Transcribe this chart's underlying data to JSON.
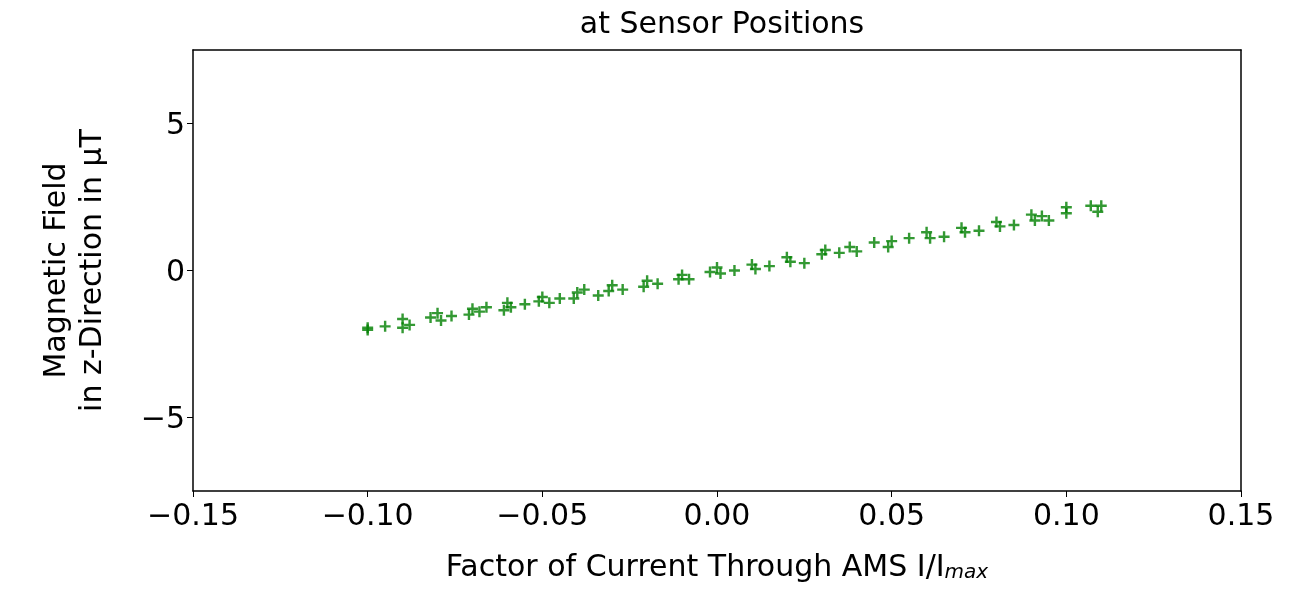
{
  "chart_data": {
    "type": "scatter",
    "title": "at Sensor Positions",
    "xlabel": "Factor of Current Through AMS I/I$_{max}$",
    "ylabel": "Magnetic Field\nin z-Direction in μT",
    "series": [
      {
        "color": "#008000",
        "x": [
          -0.1,
          -0.1,
          -0.095,
          -0.09,
          -0.09,
          -0.088,
          -0.082,
          -0.08,
          -0.079,
          -0.076,
          -0.071,
          -0.07,
          -0.068,
          -0.066,
          -0.061,
          -0.06,
          -0.059,
          -0.055,
          -0.051,
          -0.05,
          -0.048,
          -0.045,
          -0.041,
          -0.04,
          -0.038,
          -0.034,
          -0.031,
          -0.03,
          -0.027,
          -0.021,
          -0.02,
          -0.017,
          -0.011,
          -0.01,
          -0.008,
          -0.002,
          0.0,
          0.001,
          0.005,
          0.01,
          0.011,
          0.015,
          0.02,
          0.021,
          0.025,
          0.03,
          0.031,
          0.035,
          0.038,
          0.04,
          0.045,
          0.049,
          0.05,
          0.055,
          0.06,
          0.061,
          0.065,
          0.07,
          0.071,
          0.075,
          0.08,
          0.081,
          0.085,
          0.09,
          0.091,
          0.093,
          0.095,
          0.1,
          0.1,
          0.107,
          0.109,
          0.11
        ],
        "values": [
          -2.02,
          -1.95,
          -1.9,
          -1.65,
          -1.95,
          -1.85,
          -1.6,
          -1.45,
          -1.7,
          -1.55,
          -1.5,
          -1.3,
          -1.4,
          -1.25,
          -1.35,
          -1.1,
          -1.25,
          -1.15,
          -1.05,
          -0.9,
          -1.1,
          -0.95,
          -0.95,
          -0.75,
          -0.65,
          -0.85,
          -0.7,
          -0.5,
          -0.65,
          -0.55,
          -0.35,
          -0.45,
          -0.3,
          -0.15,
          -0.3,
          -0.05,
          0.1,
          -0.1,
          0.0,
          0.2,
          0.05,
          0.15,
          0.45,
          0.3,
          0.25,
          0.55,
          0.7,
          0.6,
          0.8,
          0.65,
          0.95,
          0.8,
          1.0,
          1.1,
          1.3,
          1.1,
          1.15,
          1.45,
          1.3,
          1.35,
          1.65,
          1.5,
          1.55,
          1.9,
          1.7,
          1.85,
          1.7,
          2.15,
          1.95,
          2.2,
          2.0,
          2.2
        ]
      }
    ],
    "xlim": [
      -0.15,
      0.15
    ],
    "xticks": [
      {
        "value": -0.15,
        "label": "−0.15"
      },
      {
        "value": -0.1,
        "label": "−0.10"
      },
      {
        "value": -0.05,
        "label": "−0.05"
      },
      {
        "value": 0,
        "label": "0.00"
      },
      {
        "value": 0.05,
        "label": "0.05"
      },
      {
        "value": 0.1,
        "label": "0.10"
      },
      {
        "value": 0.15,
        "label": "0.15"
      }
    ],
    "ylim": [
      -7.5,
      7.5
    ],
    "yticks": [
      {
        "value": -5,
        "label": "−5"
      },
      0,
      5
    ],
    "marker": "cross",
    "grid": false
  }
}
